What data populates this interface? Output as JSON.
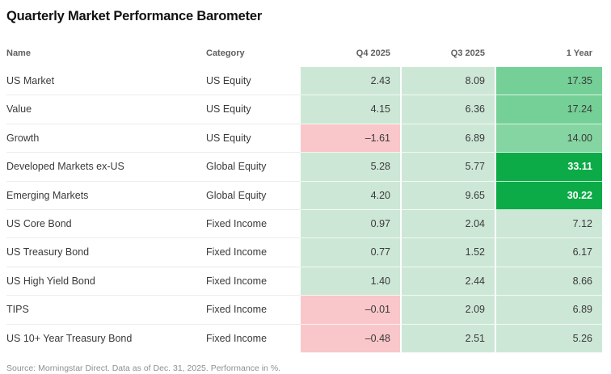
{
  "title": "Quarterly Market Performance Barometer",
  "footnote": "Source: Morningstar Direct. Data as of Dec. 31, 2025. Performance in %.",
  "colors": {
    "tones": {
      "light": "#cde7d7",
      "mid": "#74d096",
      "midlight": "#85d5a2",
      "vivid": "#0cab47",
      "pink": "#f9c7ca"
    },
    "positive_strong_text": "#ffffff",
    "body_text": "#3a3a3a",
    "header_text": "#5f5f5f"
  },
  "chart_data": {
    "type": "table",
    "title": "Quarterly Market Performance Barometer",
    "columns": [
      "Name",
      "Category",
      "Q4 2025",
      "Q3 2025",
      "1 Year"
    ],
    "value_columns": [
      "Q4 2025",
      "Q3 2025",
      "1 Year"
    ],
    "rows": [
      {
        "name": "US Market",
        "category": "US Equity",
        "q4_2025": 2.43,
        "q3_2025": 8.09,
        "one_year": 17.35,
        "tones": [
          "light",
          "light",
          "mid"
        ]
      },
      {
        "name": "Value",
        "category": "US Equity",
        "q4_2025": 4.15,
        "q3_2025": 6.36,
        "one_year": 17.24,
        "tones": [
          "light",
          "light",
          "mid"
        ]
      },
      {
        "name": "Growth",
        "category": "US Equity",
        "q4_2025": -1.61,
        "q3_2025": 6.89,
        "one_year": 14.0,
        "tones": [
          "pink",
          "light",
          "midlight"
        ]
      },
      {
        "name": "Developed Markets ex-US",
        "category": "Global Equity",
        "q4_2025": 5.28,
        "q3_2025": 5.77,
        "one_year": 33.11,
        "tones": [
          "light",
          "light",
          "vivid"
        ]
      },
      {
        "name": "Emerging Markets",
        "category": "Global Equity",
        "q4_2025": 4.2,
        "q3_2025": 9.65,
        "one_year": 30.22,
        "tones": [
          "light",
          "light",
          "vivid"
        ]
      },
      {
        "name": "US Core Bond",
        "category": "Fixed Income",
        "q4_2025": 0.97,
        "q3_2025": 2.04,
        "one_year": 7.12,
        "tones": [
          "light",
          "light",
          "light"
        ]
      },
      {
        "name": "US Treasury Bond",
        "category": "Fixed Income",
        "q4_2025": 0.77,
        "q3_2025": 1.52,
        "one_year": 6.17,
        "tones": [
          "light",
          "light",
          "light"
        ]
      },
      {
        "name": "US High Yield Bond",
        "category": "Fixed Income",
        "q4_2025": 1.4,
        "q3_2025": 2.44,
        "one_year": 8.66,
        "tones": [
          "light",
          "light",
          "light"
        ]
      },
      {
        "name": "TIPS",
        "category": "Fixed Income",
        "q4_2025": -0.01,
        "q3_2025": 2.09,
        "one_year": 6.89,
        "tones": [
          "pink",
          "light",
          "light"
        ]
      },
      {
        "name": "US 10+ Year Treasury Bond",
        "category": "Fixed Income",
        "q4_2025": -0.48,
        "q3_2025": 2.51,
        "one_year": 5.26,
        "tones": [
          "pink",
          "light",
          "light"
        ]
      }
    ],
    "legend": "none",
    "footnote": "Source: Morningstar Direct. Data as of Dec. 31, 2025. Performance in %."
  }
}
